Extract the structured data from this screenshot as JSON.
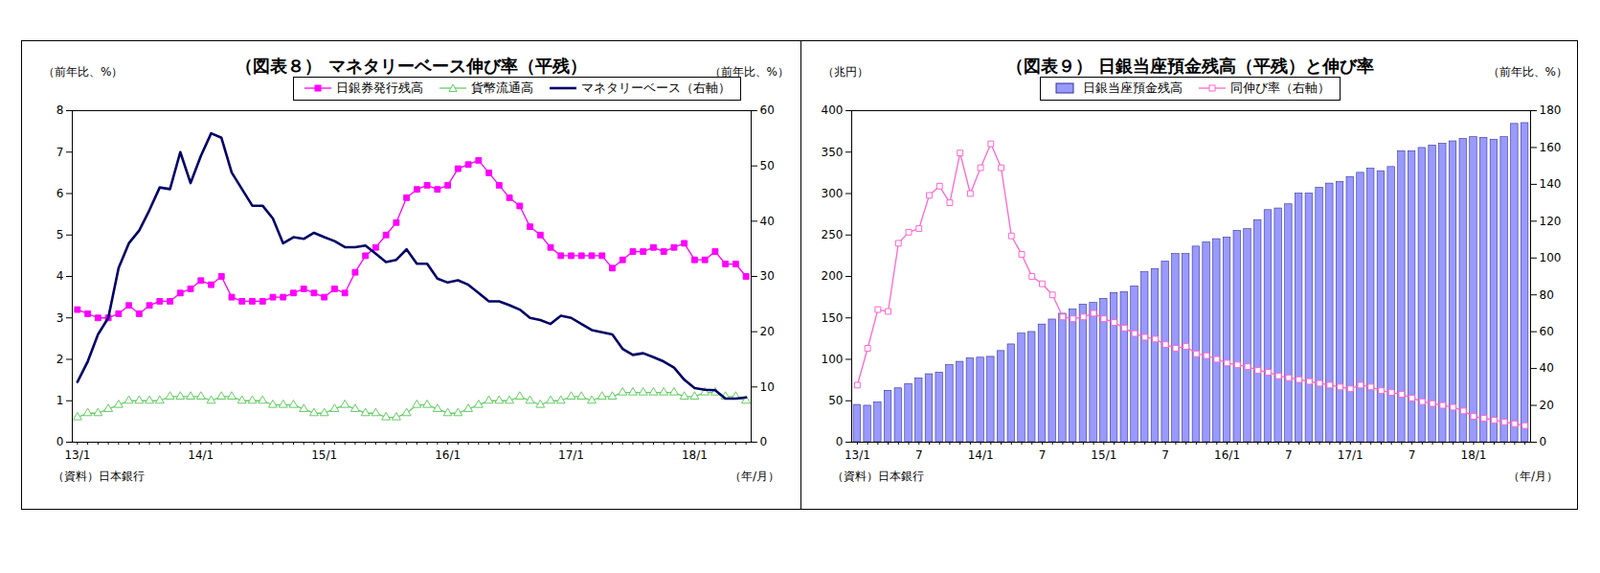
{
  "chart_data": [
    {
      "type": "line",
      "title": "（図表８） マネタリーベース伸び率（平残）",
      "y_label": "（前年比、%）",
      "y2_label": "（前年比、%）",
      "x_label": "（年/月）",
      "source": "（資料）日本銀行",
      "legend": "top-right",
      "grid": false,
      "categories": [
        "13/1",
        null,
        null,
        null,
        null,
        null,
        null,
        null,
        null,
        null,
        null,
        null,
        "14/1",
        null,
        null,
        null,
        null,
        null,
        null,
        null,
        null,
        null,
        null,
        null,
        "15/1",
        null,
        null,
        null,
        null,
        null,
        null,
        null,
        null,
        null,
        null,
        null,
        "16/1",
        null,
        null,
        null,
        null,
        null,
        null,
        null,
        null,
        null,
        null,
        null,
        "17/1",
        null,
        null,
        null,
        null,
        null,
        null,
        null,
        null,
        null,
        null,
        null,
        "18/1",
        null,
        null,
        null,
        null,
        null
      ],
      "ylim": [
        0,
        8
      ],
      "yticks": [
        0,
        1,
        2,
        3,
        4,
        5,
        6,
        7,
        8
      ],
      "y2lim": [
        0,
        60
      ],
      "y2ticks": [
        0,
        10,
        20,
        30,
        40,
        50,
        60
      ],
      "series": [
        {
          "name": "日銀券発行残高",
          "color": "#ff00ff",
          "marker": "square",
          "line_style": "solid",
          "values": [
            3.2,
            3.1,
            3.0,
            3.0,
            3.1,
            3.3,
            3.1,
            3.3,
            3.4,
            3.4,
            3.6,
            3.7,
            3.9,
            3.8,
            4.0,
            3.5,
            3.4,
            3.4,
            3.4,
            3.5,
            3.5,
            3.6,
            3.7,
            3.6,
            3.5,
            3.7,
            3.6,
            4.1,
            4.5,
            4.7,
            5.0,
            5.3,
            5.9,
            6.1,
            6.2,
            6.1,
            6.2,
            6.6,
            6.7,
            6.8,
            6.5,
            6.2,
            5.9,
            5.7,
            5.2,
            5.0,
            4.7,
            4.5,
            4.5,
            4.5,
            4.5,
            4.5,
            4.2,
            4.4,
            4.6,
            4.6,
            4.7,
            4.6,
            4.7,
            4.8,
            4.4,
            4.4,
            4.6,
            4.3,
            4.3,
            4.0
          ]
        },
        {
          "name": "貨幣流通高",
          "color": "#66cc66",
          "marker": "triangle-open",
          "line_style": "solid",
          "values": [
            0.6,
            0.7,
            0.7,
            0.8,
            0.9,
            1.0,
            1.0,
            1.0,
            1.0,
            1.1,
            1.1,
            1.1,
            1.1,
            1.0,
            1.1,
            1.1,
            1.0,
            1.0,
            1.0,
            0.9,
            0.9,
            0.9,
            0.8,
            0.7,
            0.7,
            0.8,
            0.9,
            0.8,
            0.7,
            0.7,
            0.6,
            0.6,
            0.7,
            0.9,
            0.9,
            0.8,
            0.7,
            0.7,
            0.8,
            0.9,
            1.0,
            1.0,
            1.0,
            1.1,
            1.0,
            0.9,
            1.0,
            1.0,
            1.1,
            1.1,
            1.0,
            1.1,
            1.1,
            1.2,
            1.2,
            1.2,
            1.2,
            1.2,
            1.2,
            1.1,
            1.1,
            1.2,
            1.2,
            1.1,
            1.1,
            1.0
          ]
        },
        {
          "name": "マネタリーベース（右軸）",
          "color": "#000066",
          "marker": "none",
          "line_style": "solid",
          "axis": "y2",
          "values": [
            10.9,
            14.6,
            19.5,
            22.5,
            31.5,
            36.0,
            38.3,
            42.0,
            46.1,
            45.8,
            52.5,
            46.9,
            51.8,
            55.9,
            55.1,
            48.8,
            45.8,
            42.8,
            42.8,
            40.5,
            36.0,
            37.1,
            36.8,
            37.9,
            37.1,
            36.4,
            35.3,
            35.3,
            35.6,
            34.1,
            32.6,
            33.0,
            34.9,
            32.3,
            32.3,
            29.6,
            28.9,
            29.3,
            28.5,
            27.0,
            25.5,
            25.5,
            24.8,
            24.0,
            22.5,
            22.1,
            21.4,
            22.9,
            22.5,
            21.4,
            20.3,
            19.9,
            19.5,
            16.9,
            15.8,
            16.1,
            15.4,
            14.6,
            13.5,
            11.3,
            9.8,
            9.5,
            9.4,
            7.9,
            7.9,
            8.1
          ]
        }
      ]
    },
    {
      "type": "bar",
      "title": "（図表９） 日銀当座預金残高（平残）と伸び率",
      "y_label": "（兆円）",
      "y2_label": "（前年比、%）",
      "x_label": "（年/月）",
      "source": "（資料）日本銀行",
      "legend": "top",
      "grid": false,
      "categories": [
        "13/1",
        null,
        null,
        null,
        null,
        null,
        "7",
        null,
        null,
        null,
        null,
        null,
        "14/1",
        null,
        null,
        null,
        null,
        null,
        "7",
        null,
        null,
        null,
        null,
        null,
        "15/1",
        null,
        null,
        null,
        null,
        null,
        "7",
        null,
        null,
        null,
        null,
        null,
        "16/1",
        null,
        null,
        null,
        null,
        null,
        "7",
        null,
        null,
        null,
        null,
        null,
        "17/1",
        null,
        null,
        null,
        null,
        null,
        "7",
        null,
        null,
        null,
        null,
        null,
        "18/1",
        null,
        null,
        null,
        null,
        null
      ],
      "ylim": [
        0,
        400
      ],
      "yticks": [
        0,
        50,
        100,
        150,
        200,
        250,
        300,
        350,
        400
      ],
      "y2lim": [
        0,
        180
      ],
      "y2ticks": [
        0,
        20,
        40,
        60,
        80,
        100,
        120,
        140,
        160,
        180
      ],
      "series": [
        {
          "name": "日銀当座預金残高",
          "type": "bar",
          "color": "#9999ff",
          "values": [
            45,
            44,
            48,
            62,
            65,
            70,
            77,
            82,
            84,
            93,
            97,
            101,
            102,
            103,
            110,
            118,
            131,
            133,
            142,
            148,
            155,
            160,
            166,
            168,
            173,
            180,
            181,
            188,
            205,
            209,
            218,
            227,
            227,
            236,
            241,
            245,
            247,
            255,
            257,
            268,
            280,
            282,
            287,
            300,
            300,
            307,
            312,
            314,
            320,
            325,
            330,
            327,
            332,
            351,
            351,
            355,
            358,
            360,
            363,
            366,
            368,
            367,
            365,
            368,
            384,
            385
          ]
        },
        {
          "name": "同伸び率（右軸）",
          "type": "line",
          "color": "#ff66cc",
          "marker": "square-open",
          "line_style": "solid",
          "axis": "y2",
          "values": [
            31,
            51,
            72,
            71,
            108,
            114,
            116,
            134,
            139,
            130,
            157,
            135,
            149,
            162,
            149,
            112,
            102,
            90,
            86,
            80,
            68,
            67,
            68,
            70,
            67,
            65,
            62,
            59,
            57,
            56,
            53,
            51,
            52,
            48,
            47,
            45,
            43,
            42,
            41,
            39,
            38,
            36,
            35,
            34,
            33,
            32,
            31,
            30,
            29,
            31,
            30,
            28,
            27,
            26,
            24,
            22,
            21,
            20,
            19,
            17,
            14,
            13,
            12,
            11,
            10,
            9
          ]
        }
      ]
    }
  ]
}
